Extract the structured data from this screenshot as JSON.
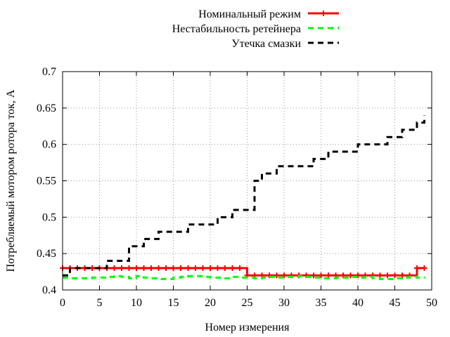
{
  "chart_data": {
    "type": "line",
    "xlabel": "Номер измерения",
    "ylabel": "Потребляемый мотором ротора ток, А",
    "xlim": [
      0,
      50
    ],
    "ylim": [
      0.4,
      0.7
    ],
    "xticks": [
      0,
      5,
      10,
      15,
      20,
      25,
      30,
      35,
      40,
      45,
      50
    ],
    "yticks": [
      0.4,
      0.45,
      0.5,
      0.55,
      0.6,
      0.65,
      0.7
    ],
    "ytick_labels": [
      "0.4",
      "0.45",
      "0.5",
      "0.55",
      "0.6",
      "0.65",
      "0.7"
    ],
    "grid": true,
    "legend_position": "top-right",
    "series": [
      {
        "name": "Номинальный режим",
        "color": "#ff0000",
        "style": "solid-with-plus-markers",
        "x": [
          0,
          1,
          2,
          3,
          4,
          5,
          6,
          7,
          8,
          9,
          10,
          11,
          12,
          13,
          14,
          15,
          16,
          17,
          18,
          19,
          20,
          21,
          22,
          23,
          24,
          25,
          26,
          27,
          28,
          29,
          30,
          31,
          32,
          33,
          34,
          35,
          36,
          37,
          38,
          39,
          40,
          41,
          42,
          43,
          44,
          45,
          46,
          47,
          48,
          49
        ],
        "y": [
          0.43,
          0.43,
          0.43,
          0.43,
          0.43,
          0.43,
          0.43,
          0.43,
          0.43,
          0.43,
          0.43,
          0.43,
          0.43,
          0.43,
          0.43,
          0.43,
          0.43,
          0.43,
          0.43,
          0.43,
          0.43,
          0.43,
          0.43,
          0.43,
          0.43,
          0.42,
          0.42,
          0.42,
          0.42,
          0.42,
          0.42,
          0.42,
          0.42,
          0.42,
          0.42,
          0.42,
          0.42,
          0.42,
          0.42,
          0.42,
          0.42,
          0.42,
          0.42,
          0.42,
          0.42,
          0.42,
          0.42,
          0.42,
          0.43,
          0.43
        ]
      },
      {
        "name": "Нестабильность ретейнера",
        "color": "#00ff00",
        "style": "dashed",
        "x": [
          0,
          1,
          2,
          3,
          4,
          5,
          6,
          7,
          8,
          9,
          10,
          11,
          12,
          13,
          14,
          15,
          16,
          17,
          18,
          19,
          20,
          21,
          22,
          23,
          24,
          25,
          26,
          27,
          28,
          29,
          30,
          31,
          32,
          33,
          34,
          35,
          36,
          37,
          38,
          39,
          40,
          41,
          42,
          43,
          44,
          45,
          46,
          47,
          48,
          49
        ],
        "y": [
          0.417,
          0.416,
          0.416,
          0.416,
          0.417,
          0.417,
          0.418,
          0.419,
          0.418,
          0.416,
          0.419,
          0.417,
          0.416,
          0.415,
          0.415,
          0.417,
          0.418,
          0.419,
          0.419,
          0.418,
          0.417,
          0.417,
          0.416,
          0.418,
          0.417,
          0.417,
          0.416,
          0.417,
          0.418,
          0.417,
          0.418,
          0.418,
          0.419,
          0.418,
          0.417,
          0.416,
          0.416,
          0.417,
          0.417,
          0.418,
          0.417,
          0.418,
          0.416,
          0.415,
          0.415,
          0.416,
          0.417,
          0.418,
          0.417,
          0.416
        ]
      },
      {
        "name": "Утечка смазки",
        "color": "#000000",
        "style": "dashed",
        "x": [
          0,
          1,
          2,
          3,
          4,
          5,
          6,
          7,
          8,
          9,
          10,
          11,
          12,
          13,
          14,
          15,
          16,
          17,
          18,
          19,
          20,
          21,
          22,
          23,
          24,
          25,
          26,
          27,
          28,
          29,
          30,
          31,
          32,
          33,
          34,
          35,
          36,
          37,
          38,
          39,
          40,
          41,
          42,
          43,
          44,
          45,
          46,
          47,
          48,
          49
        ],
        "y": [
          0.42,
          0.43,
          0.43,
          0.43,
          0.43,
          0.43,
          0.44,
          0.44,
          0.44,
          0.46,
          0.46,
          0.47,
          0.47,
          0.48,
          0.48,
          0.48,
          0.48,
          0.49,
          0.49,
          0.49,
          0.49,
          0.5,
          0.5,
          0.51,
          0.51,
          0.51,
          0.55,
          0.56,
          0.56,
          0.57,
          0.57,
          0.57,
          0.57,
          0.57,
          0.58,
          0.58,
          0.59,
          0.59,
          0.59,
          0.59,
          0.6,
          0.6,
          0.6,
          0.6,
          0.61,
          0.61,
          0.62,
          0.62,
          0.63,
          0.64
        ]
      }
    ]
  }
}
